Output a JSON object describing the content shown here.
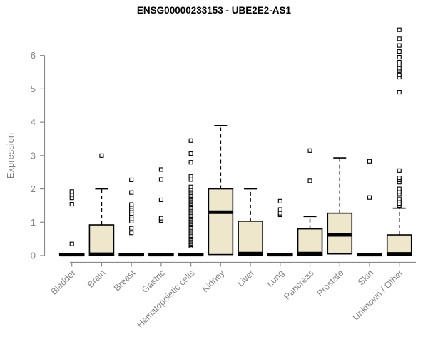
{
  "chart_data": {
    "type": "boxplot",
    "title": "ENSG00000233153 - UBE2E2-AS1",
    "xlabel": "",
    "ylabel": "Expression",
    "ylim": [
      0,
      6.9
    ],
    "yticks": [
      0,
      1,
      2,
      3,
      4,
      5,
      6
    ],
    "grid": false,
    "legend": "none",
    "box_fill_color": "#EEE7CC",
    "box_line_color": "#000000",
    "axis_color": "#8a8a8a",
    "categories": [
      "Bladder",
      "Brain",
      "Breast",
      "Gastric",
      "Hematopoietic cells",
      "Kidney",
      "Liver",
      "Lung",
      "Pancreas",
      "Prostate",
      "Skin",
      "Unknown / Other"
    ],
    "boxes": [
      {
        "category": "Bladder",
        "q1": 0,
        "median": 0.03,
        "q3": 0.06,
        "whisker_low": 0,
        "whisker_high": 0.06,
        "outliers": [
          0.35,
          1.54,
          1.73,
          1.83,
          1.92
        ]
      },
      {
        "category": "Brain",
        "q1": 0,
        "median": 0.04,
        "q3": 0.92,
        "whisker_low": 0,
        "whisker_high": 2.0,
        "outliers": [
          3.0
        ]
      },
      {
        "category": "Breast",
        "q1": 0,
        "median": 0.03,
        "q3": 0.06,
        "whisker_low": 0,
        "whisker_high": 0.06,
        "outliers": [
          0.68,
          0.82,
          1.03,
          1.1,
          1.18,
          1.26,
          1.33,
          1.4,
          1.47,
          1.53,
          1.89,
          2.27
        ]
      },
      {
        "category": "Gastric",
        "q1": 0,
        "median": 0.03,
        "q3": 0.06,
        "whisker_low": 0,
        "whisker_high": 0.06,
        "outliers": [
          1.05,
          1.12,
          1.67,
          2.28,
          2.58
        ]
      },
      {
        "category": "Hematopoietic cells",
        "q1": 0,
        "median": 0.03,
        "q3": 0.06,
        "whisker_low": 0,
        "whisker_high": 0.06,
        "outliers": [
          0.28,
          0.32,
          0.36,
          0.4,
          0.44,
          0.48,
          0.52,
          0.56,
          0.6,
          0.64,
          0.68,
          0.72,
          0.76,
          0.8,
          0.84,
          0.88,
          0.92,
          0.96,
          1.0,
          1.04,
          1.08,
          1.12,
          1.16,
          1.2,
          1.24,
          1.28,
          1.32,
          1.36,
          1.4,
          1.44,
          1.48,
          1.52,
          1.56,
          1.6,
          1.64,
          1.68,
          1.72,
          1.76,
          1.8,
          1.84,
          1.88,
          1.92,
          1.96,
          2.0,
          2.06,
          2.28,
          2.38,
          2.8,
          3.06,
          3.45
        ]
      },
      {
        "category": "Kidney",
        "q1": 0.03,
        "median": 1.3,
        "q3": 2.0,
        "whisker_low": 0.03,
        "whisker_high": 3.9,
        "outliers": []
      },
      {
        "category": "Liver",
        "q1": 0,
        "median": 0.06,
        "q3": 1.03,
        "whisker_low": 0,
        "whisker_high": 2.0,
        "outliers": []
      },
      {
        "category": "Lung",
        "q1": 0,
        "median": 0.03,
        "q3": 0.06,
        "whisker_low": 0,
        "whisker_high": 0.06,
        "outliers": [
          1.22,
          1.27,
          1.38,
          1.63
        ]
      },
      {
        "category": "Pancreas",
        "q1": 0,
        "median": 0.06,
        "q3": 0.8,
        "whisker_low": 0,
        "whisker_high": 1.17,
        "outliers": [
          2.24,
          3.15
        ]
      },
      {
        "category": "Prostate",
        "q1": 0.05,
        "median": 0.62,
        "q3": 1.27,
        "whisker_low": 0.05,
        "whisker_high": 2.93,
        "outliers": []
      },
      {
        "category": "Skin",
        "q1": 0,
        "median": 0.03,
        "q3": 0.06,
        "whisker_low": 0,
        "whisker_high": 0.06,
        "outliers": [
          1.74,
          2.83
        ]
      },
      {
        "category": "Unknown / Other",
        "q1": 0,
        "median": 0.05,
        "q3": 0.62,
        "whisker_low": 0,
        "whisker_high": 1.42,
        "outliers": [
          1.5,
          1.56,
          1.63,
          1.7,
          1.85,
          1.92,
          2.0,
          2.2,
          2.27,
          2.33,
          2.55,
          4.9,
          5.35,
          5.42,
          5.55,
          5.62,
          5.72,
          5.8,
          5.95,
          6.12,
          6.3,
          6.5,
          6.77
        ]
      }
    ]
  }
}
